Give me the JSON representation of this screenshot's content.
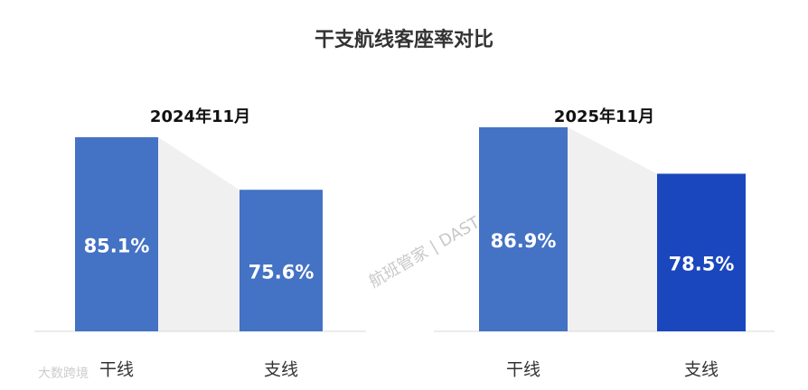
{
  "title": "干支航线客座率对比",
  "watermarks": [
    "航班管家 | DAST",
    "大数跨境"
  ],
  "chart_data": [
    {
      "type": "bar",
      "title": "2024年11月",
      "categories": [
        "干线",
        "支线"
      ],
      "values": [
        85.1,
        75.6
      ],
      "value_labels": [
        "85.1%",
        "75.6%"
      ],
      "colors": [
        "#4472c4",
        "#4472c4"
      ],
      "ylim": [
        50,
        90
      ]
    },
    {
      "type": "bar",
      "title": "2025年11月",
      "categories": [
        "干线",
        "支线"
      ],
      "values": [
        86.9,
        78.5
      ],
      "value_labels": [
        "86.9%",
        "78.5%"
      ],
      "colors": [
        "#4472c4",
        "#1a47bd"
      ],
      "ylim": [
        50,
        90
      ]
    }
  ]
}
